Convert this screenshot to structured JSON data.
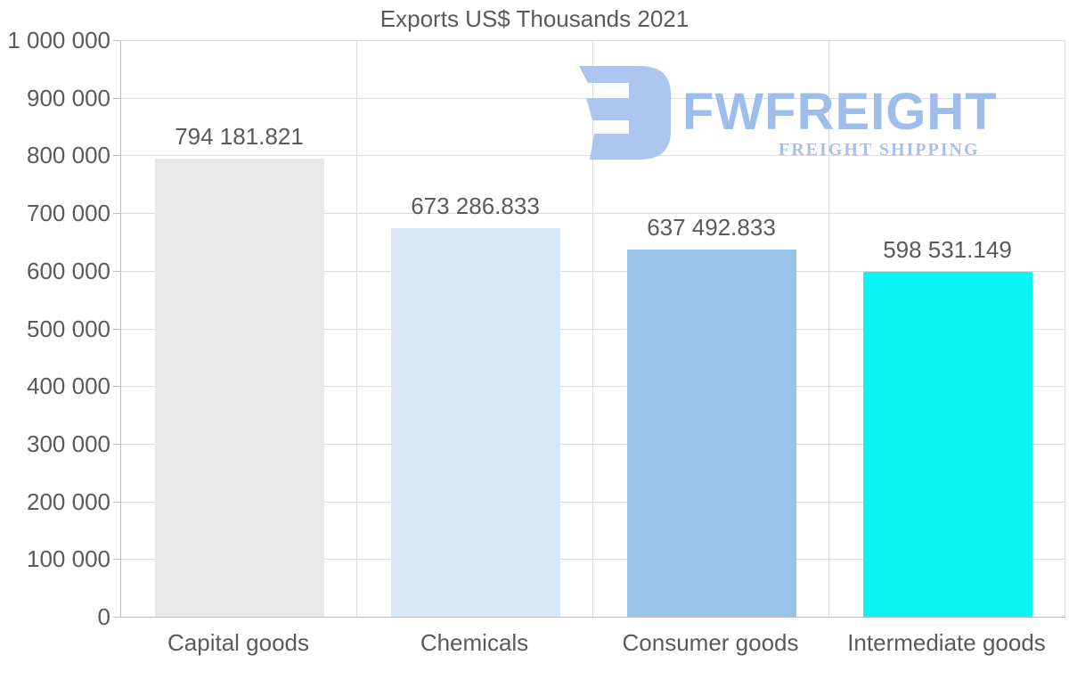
{
  "chart_data": {
    "type": "bar",
    "title": "Exports US$ Thousands 2021",
    "categories": [
      "Capital goods",
      "Chemicals",
      "Consumer goods",
      "Intermediate goods"
    ],
    "values": [
      794181.821,
      673286.833,
      637492.833,
      598531.149
    ],
    "bar_labels": [
      "794 181.821",
      "673 286.833",
      "637 492.833",
      "598 531.149"
    ],
    "bar_colors": [
      "#e8e8e8",
      "#d9e8f7",
      "#99c3e8",
      "#0af4f4"
    ],
    "xlabel": "",
    "ylabel": "",
    "ylim": [
      0,
      1000000
    ],
    "ytick_interval": 100000,
    "ytick_labels": [
      "0",
      "100 000",
      "200 000",
      "300 000",
      "400 000",
      "500 000",
      "600 000",
      "700 000",
      "800 000",
      "900 000",
      "1 000 000"
    ],
    "grid": true,
    "legend": false
  },
  "watermark": {
    "brand": "FWFREIGHT",
    "tagline": "FREIGHT SHIPPING",
    "brand_color": "#9ebdeb",
    "tagline_color": "#a6c0e8",
    "logo_color": "#abc5ef"
  },
  "colors": {
    "text": "#5a5a5a",
    "gridline": "#dcdcdc",
    "axis": "#bdbdbd",
    "background": "#ffffff"
  }
}
